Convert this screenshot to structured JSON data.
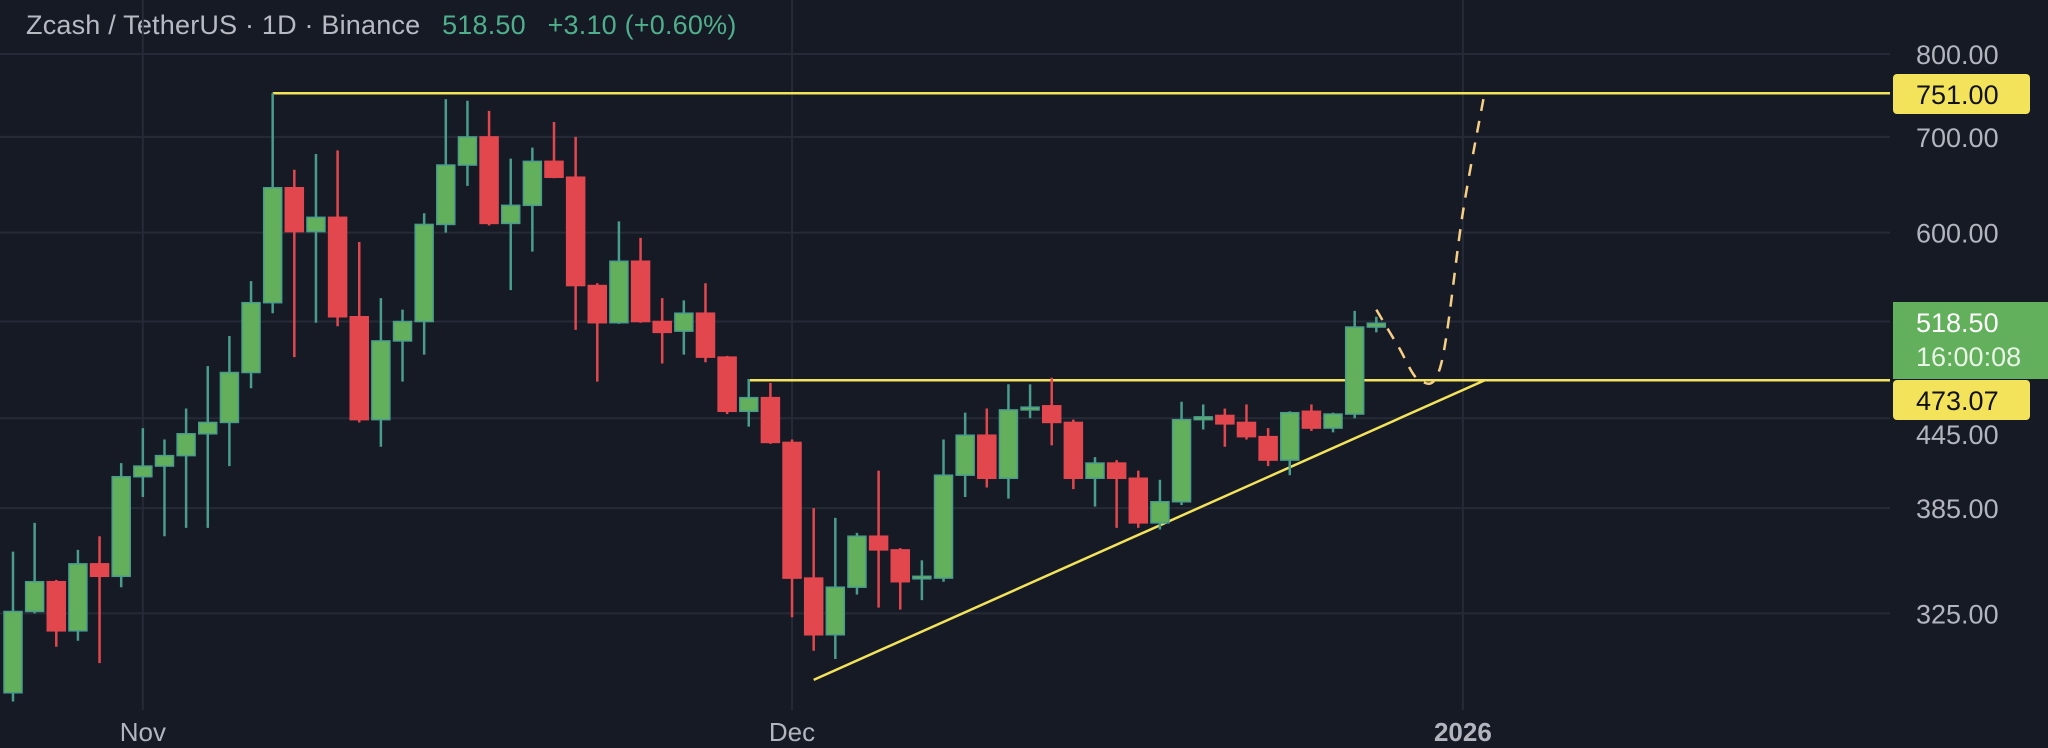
{
  "header": {
    "symbol": "Zcash / TetherUS · 1D · Binance",
    "last_price": "518.50",
    "change": "+3.10 (+0.60%)"
  },
  "colors": {
    "background": "#161a25",
    "grid": "#252a36",
    "up_body": "#63b05c",
    "up_wick": "#4a9c8c",
    "down": "#e3474e",
    "drawing_yellow": "#f3e35a",
    "projection": "#f5cf86",
    "axis_text": "#b2b5be",
    "header_green": "#4fae8c"
  },
  "chart_data": {
    "type": "candlestick",
    "title": "Zcash / TetherUS · 1D · Binance",
    "y_scale": "log",
    "ylim": [
      285,
      830
    ],
    "grid": true,
    "y_ticks": [
      "800.00",
      "700.00",
      "600.00",
      "445.00",
      "385.00",
      "325.00"
    ],
    "y_gridlines": [
      800,
      700,
      600,
      520,
      445,
      385,
      325
    ],
    "x_ticks": [
      {
        "date": "2025-11-01",
        "label": "Nov",
        "bold": false
      },
      {
        "date": "2025-12-01",
        "label": "Dec",
        "bold": false
      },
      {
        "date": "2026-01-01",
        "label": "2026",
        "bold": true
      }
    ],
    "candles_columns": [
      "date",
      "open",
      "high",
      "low",
      "close"
    ],
    "candles": [
      [
        "2025-10-26",
        286,
        359,
        282,
        326
      ],
      [
        "2025-10-27",
        326,
        376,
        325,
        342
      ],
      [
        "2025-10-28",
        342,
        343,
        308,
        316
      ],
      [
        "2025-10-29",
        316,
        360,
        311,
        352
      ],
      [
        "2025-10-30",
        352,
        368,
        300,
        345
      ],
      [
        "2025-10-31",
        345,
        414,
        339,
        405
      ],
      [
        "2025-11-01",
        405,
        438,
        392,
        412
      ],
      [
        "2025-11-02",
        412,
        430,
        368,
        419
      ],
      [
        "2025-11-03",
        419,
        452,
        373,
        434
      ],
      [
        "2025-11-04",
        434,
        484,
        373,
        442
      ],
      [
        "2025-11-05",
        442,
        508,
        412,
        479
      ],
      [
        "2025-11-06",
        479,
        555,
        467,
        536
      ],
      [
        "2025-11-07",
        536,
        751,
        527,
        645
      ],
      [
        "2025-11-08",
        645,
        664,
        491,
        601
      ],
      [
        "2025-11-09",
        601,
        681,
        519,
        615
      ],
      [
        "2025-11-10",
        615,
        685,
        516,
        524
      ],
      [
        "2025-11-11",
        524,
        591,
        442,
        444
      ],
      [
        "2025-11-12",
        444,
        540,
        425,
        504
      ],
      [
        "2025-11-13",
        504,
        530,
        472,
        520
      ],
      [
        "2025-11-14",
        520,
        619,
        493,
        608
      ],
      [
        "2025-11-15",
        608,
        744,
        600,
        669
      ],
      [
        "2025-11-16",
        669,
        742,
        647,
        700
      ],
      [
        "2025-11-17",
        700,
        730,
        607,
        609
      ],
      [
        "2025-11-18",
        609,
        676,
        547,
        627
      ],
      [
        "2025-11-19",
        627,
        688,
        582,
        673
      ],
      [
        "2025-11-20",
        673,
        717,
        655,
        656
      ],
      [
        "2025-11-21",
        656,
        700,
        513,
        551
      ],
      [
        "2025-11-22",
        551,
        553,
        472,
        519
      ],
      [
        "2025-11-23",
        519,
        611,
        518,
        573
      ],
      [
        "2025-11-24",
        573,
        595,
        519,
        520
      ],
      [
        "2025-11-25",
        520,
        540,
        486,
        511
      ],
      [
        "2025-11-26",
        512,
        538,
        493,
        527
      ],
      [
        "2025-11-27",
        527,
        553,
        487,
        491
      ],
      [
        "2025-11-28",
        491,
        492,
        448,
        450
      ],
      [
        "2025-11-29",
        450,
        474,
        439,
        460
      ],
      [
        "2025-11-30",
        460,
        471,
        427,
        428
      ],
      [
        "2025-12-01",
        428,
        430,
        323,
        344
      ],
      [
        "2025-12-02",
        344,
        385,
        306,
        314
      ],
      [
        "2025-12-03",
        314,
        379,
        302,
        339
      ],
      [
        "2025-12-04",
        339,
        370,
        335,
        368
      ],
      [
        "2025-12-05",
        368,
        409,
        328,
        360
      ],
      [
        "2025-12-06",
        360,
        361,
        327,
        342
      ],
      [
        "2025-12-07",
        344,
        354,
        332,
        345
      ],
      [
        "2025-12-08",
        344,
        430,
        342,
        406
      ],
      [
        "2025-12-09",
        406,
        449,
        392,
        433
      ],
      [
        "2025-12-10",
        433,
        452,
        398,
        404
      ],
      [
        "2025-12-11",
        404,
        470,
        391,
        451
      ],
      [
        "2025-12-12",
        451,
        470,
        445,
        453
      ],
      [
        "2025-12-13",
        454,
        475,
        426,
        442
      ],
      [
        "2025-12-14",
        442,
        444,
        397,
        404
      ],
      [
        "2025-12-15",
        404,
        418,
        386,
        414
      ],
      [
        "2025-12-16",
        414,
        416,
        373,
        404
      ],
      [
        "2025-12-17",
        404,
        409,
        373,
        376
      ],
      [
        "2025-12-18",
        376,
        403,
        372,
        389
      ],
      [
        "2025-12-19",
        389,
        457,
        387,
        444
      ],
      [
        "2025-12-20",
        444,
        455,
        437,
        446
      ],
      [
        "2025-12-21",
        447,
        452,
        425,
        441
      ],
      [
        "2025-12-22",
        442,
        455,
        430,
        432
      ],
      [
        "2025-12-23",
        432,
        438,
        412,
        416
      ],
      [
        "2025-12-24",
        416,
        450,
        406,
        449
      ],
      [
        "2025-12-25",
        450,
        455,
        436,
        438
      ],
      [
        "2025-12-26",
        438,
        449,
        435,
        448
      ],
      [
        "2025-12-27",
        448,
        529,
        445,
        515.4
      ],
      [
        "2025-12-28",
        515.4,
        524,
        511,
        518.5
      ]
    ],
    "drawings": {
      "resistance": {
        "price": 751.0,
        "from": "2025-11-07",
        "label": "751.00"
      },
      "breakout_level": {
        "price": 473.07,
        "from": "2025-11-29",
        "label": "473.07"
      },
      "ascending_trendline": [
        [
          "2025-12-02",
          292
        ],
        [
          "2026-01-02",
          473
        ]
      ],
      "projection_path": [
        [
          "2025-12-28",
          530
        ],
        [
          "2025-12-29",
          500
        ],
        [
          "2025-12-30",
          473
        ],
        [
          "2025-12-31",
          486
        ],
        [
          "2026-01-01",
          620
        ],
        [
          "2026-01-02",
          751
        ]
      ]
    },
    "last_price_tag": {
      "price": 518.5,
      "label": "518.50",
      "countdown": "16:00:08"
    }
  }
}
